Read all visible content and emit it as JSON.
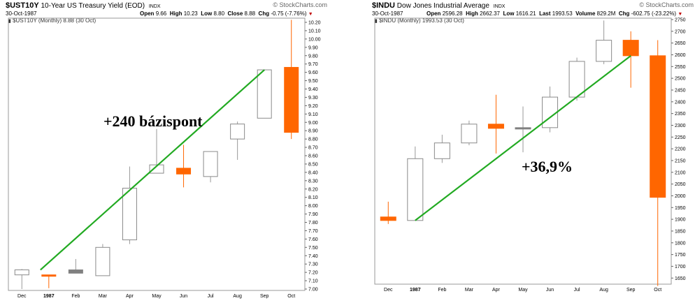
{
  "left": {
    "header": {
      "symbol": "$UST10Y",
      "name": "10-Year US Treasury Yield (EOD)",
      "index": "INDX",
      "brand": "© StockCharts.com",
      "date": "30-Oct-1987",
      "open_label": "Open",
      "open": "9.66",
      "high_label": "High",
      "high": "10.23",
      "low_label": "Low",
      "low": "8.80",
      "close_label": "Close",
      "close": "8.88",
      "chg_label": "Chg",
      "chg": "-0.75 (-7.76%)"
    },
    "legend": "$UST10Y (Monthly) 8.88 (30 Oct)",
    "annotation": "+240 bázispont"
  },
  "right": {
    "header": {
      "symbol": "$INDU",
      "name": "Dow Jones Industrial Average",
      "index": "INDX",
      "brand": "© StockCharts.com",
      "date": "30-Oct-1987",
      "open_label": "Open",
      "open": "2596.28",
      "high_label": "High",
      "high": "2662.37",
      "low_label": "Low",
      "low": "1616.21",
      "last_label": "Last",
      "last": "1993.53",
      "volume_label": "Volume",
      "volume": "829.2M",
      "chg_label": "Chg",
      "chg": "-602.75 (-23.22%)"
    },
    "legend": "$INDU (Monthly) 1993.53 (30 Oct)",
    "annotation": "+36,9%"
  },
  "colors": {
    "up": "#ffffff",
    "down": "#ff6600",
    "neutral": "#808080",
    "trend": "#22aa22",
    "border": "#999999"
  },
  "chart_data": [
    {
      "type": "candlestick",
      "title": "$UST10Y 10-Year US Treasury Yield (EOD)",
      "categories": [
        "Dec",
        "1987",
        "Feb",
        "Mar",
        "Apr",
        "May",
        "Jun",
        "Jul",
        "Aug",
        "Sep",
        "Oct"
      ],
      "ylim": [
        7.0,
        10.23
      ],
      "yticks": [
        "7.00",
        "7.10",
        "7.20",
        "7.30",
        "7.40",
        "7.50",
        "7.60",
        "7.70",
        "7.80",
        "7.90",
        "8.00",
        "8.10",
        "8.20",
        "8.30",
        "8.40",
        "8.50",
        "8.60",
        "8.70",
        "8.80",
        "8.90",
        "9.00",
        "9.10",
        "9.20",
        "9.30",
        "9.40",
        "9.50",
        "9.60",
        "9.70",
        "9.80",
        "9.90",
        "10.00",
        "10.10",
        "10.20"
      ],
      "candles": [
        {
          "open": 7.17,
          "high": 7.24,
          "low": 7.0,
          "close": 7.23,
          "color": "up"
        },
        {
          "open": 7.17,
          "high": 7.17,
          "low": 7.01,
          "close": 7.17,
          "color": "down"
        },
        {
          "open": 7.19,
          "high": 7.36,
          "low": 7.19,
          "close": 7.23,
          "color": "neutral"
        },
        {
          "open": 7.16,
          "high": 7.54,
          "low": 7.16,
          "close": 7.5,
          "color": "up"
        },
        {
          "open": 7.59,
          "high": 8.47,
          "low": 7.54,
          "close": 8.21,
          "color": "up"
        },
        {
          "open": 8.39,
          "high": 8.92,
          "low": 8.39,
          "close": 8.49,
          "color": "up"
        },
        {
          "open": 8.45,
          "high": 8.73,
          "low": 8.22,
          "close": 8.38,
          "color": "down"
        },
        {
          "open": 8.35,
          "high": 8.65,
          "low": 8.28,
          "close": 8.65,
          "color": "up"
        },
        {
          "open": 8.8,
          "high": 9.01,
          "low": 8.55,
          "close": 8.98,
          "color": "up"
        },
        {
          "open": 9.05,
          "high": 9.63,
          "low": 9.05,
          "close": 9.63,
          "color": "up"
        },
        {
          "open": 9.66,
          "high": 10.23,
          "low": 8.8,
          "close": 8.88,
          "color": "down"
        }
      ],
      "trendline": {
        "from": {
          "category": "1987",
          "value": 7.23
        },
        "to": {
          "category": "Sep",
          "value": 9.63
        }
      },
      "annotation": "+240 bázispont"
    },
    {
      "type": "candlestick",
      "title": "$INDU Dow Jones Industrial Average",
      "categories": [
        "Dec",
        "1987",
        "Feb",
        "Mar",
        "Apr",
        "May",
        "Jun",
        "Jul",
        "Aug",
        "Sep",
        "Oct"
      ],
      "ylim": [
        1616.21,
        2750
      ],
      "yticks": [
        "1650",
        "1700",
        "1750",
        "1800",
        "1850",
        "1900",
        "1950",
        "2000",
        "2050",
        "2100",
        "2150",
        "2200",
        "2250",
        "2300",
        "2350",
        "2400",
        "2450",
        "2500",
        "2550",
        "2600",
        "2650",
        "2700",
        "2750"
      ],
      "candles": [
        {
          "open": 1910,
          "high": 1975,
          "low": 1880,
          "close": 1895,
          "color": "down"
        },
        {
          "open": 1895,
          "high": 2210,
          "low": 1895,
          "close": 2158,
          "color": "up"
        },
        {
          "open": 2158,
          "high": 2260,
          "low": 2140,
          "close": 2225,
          "color": "up"
        },
        {
          "open": 2225,
          "high": 2320,
          "low": 2215,
          "close": 2305,
          "color": "up"
        },
        {
          "open": 2305,
          "high": 2430,
          "low": 2180,
          "close": 2287,
          "color": "down"
        },
        {
          "open": 2285,
          "high": 2380,
          "low": 2185,
          "close": 2290,
          "color": "neutral"
        },
        {
          "open": 2290,
          "high": 2465,
          "low": 2270,
          "close": 2420,
          "color": "up"
        },
        {
          "open": 2420,
          "high": 2588,
          "low": 2405,
          "close": 2572,
          "color": "up"
        },
        {
          "open": 2572,
          "high": 2746,
          "low": 2560,
          "close": 2662,
          "color": "up"
        },
        {
          "open": 2662,
          "high": 2700,
          "low": 2460,
          "close": 2596,
          "color": "down"
        },
        {
          "open": 2596,
          "high": 2662.37,
          "low": 1616.21,
          "close": 1993.53,
          "color": "down"
        }
      ],
      "trendline": {
        "from": {
          "category": "1987",
          "value": 1895
        },
        "to": {
          "category": "Sep",
          "value": 2596
        }
      },
      "annotation": "+36,9%"
    }
  ]
}
